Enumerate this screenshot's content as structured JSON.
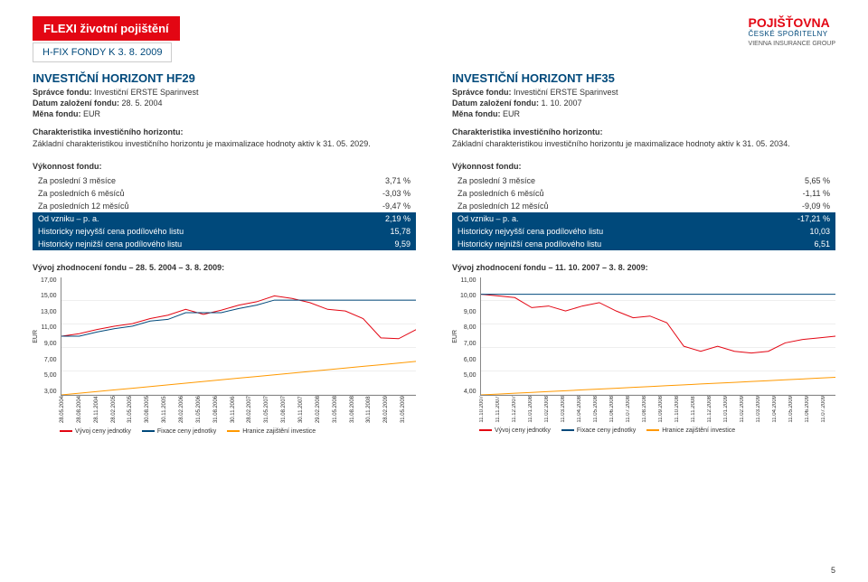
{
  "page_number": "5",
  "header": {
    "title": "FLEXI životní pojištění",
    "subtitle": "H-FIX FONDY K 3. 8. 2009"
  },
  "logo": {
    "brand": "POJIŠŤOVNA",
    "sub": "ČESKÉ SPOŘITELNY",
    "group": "VIENNA INSURANCE GROUP"
  },
  "left": {
    "title": "INVESTIČNÍ HORIZONT HF29",
    "manager_label": "Správce fondu:",
    "manager": "Investiční ERSTE Sparinvest",
    "date_label": "Datum založení fondu:",
    "date": "28. 5. 2004",
    "currency_label": "Měna fondu:",
    "currency": "EUR",
    "charac_title": "Charakteristika investičního horizontu:",
    "charac_body": "Základní charakteristikou investičního horizontu je maximalizace hodnoty aktiv k 31. 05. 2029.",
    "perf_title": "Výkonnost fondu:",
    "rows": [
      {
        "label": "Za poslední 3 měsíce",
        "value": "3,71 %",
        "dark": false
      },
      {
        "label": "Za posledních 6 měsíců",
        "value": "-3,03 %",
        "dark": false
      },
      {
        "label": "Za posledních 12 měsíců",
        "value": "-9,47 %",
        "dark": false
      },
      {
        "label": "Od vzniku – p. a.",
        "value": "2,19 %",
        "dark": true
      },
      {
        "label": "Historicky nejvyšší cena podílového listu",
        "value": "15,78",
        "dark": true
      },
      {
        "label": "Historicky nejnižší cena podílového listu",
        "value": "9,59",
        "dark": true
      }
    ],
    "chart_title": "Vývoj zhodnocení fondu – 28. 5. 2004 – 3. 8. 2009:",
    "chart": {
      "y_label": "EUR",
      "y_ticks": [
        "17,00",
        "15,00",
        "13,00",
        "11,00",
        "9,00",
        "7,00",
        "5,00",
        "3,00"
      ],
      "y_min": 3,
      "y_max": 17,
      "x_ticks": [
        "28.05.2004",
        "28.08.2004",
        "28.11.2004",
        "28.02.2005",
        "31.05.2005",
        "30.08.2005",
        "30.11.2005",
        "28.02.2006",
        "31.05.2006",
        "31.08.2006",
        "30.11.2006",
        "28.02.2007",
        "31.05.2007",
        "31.08.2007",
        "30.11.2007",
        "29.02.2008",
        "31.05.2008",
        "31.08.2008",
        "30.11.2008",
        "28.02.2009",
        "31.05.2009"
      ],
      "series": {
        "vyvoj": {
          "color": "#e30613",
          "values": [
            10.0,
            10.3,
            10.8,
            11.2,
            11.5,
            12.1,
            12.5,
            13.2,
            12.6,
            13.1,
            13.7,
            14.1,
            14.8,
            14.5,
            14.0,
            13.2,
            13.0,
            12.1,
            9.8,
            9.7,
            10.8
          ]
        },
        "fixace": {
          "color": "#00497b",
          "values": [
            10.0,
            10.0,
            10.5,
            10.9,
            11.2,
            11.8,
            12.0,
            12.8,
            12.8,
            12.8,
            13.3,
            13.7,
            14.3,
            14.3,
            14.3,
            14.3,
            14.3,
            14.3,
            14.3,
            14.3,
            14.3
          ]
        },
        "hranice": {
          "color": "#ff9900",
          "values": [
            3.0,
            3.2,
            3.4,
            3.6,
            3.8,
            4.0,
            4.2,
            4.4,
            4.6,
            4.8,
            5.0,
            5.2,
            5.4,
            5.6,
            5.8,
            6.0,
            6.2,
            6.4,
            6.6,
            6.8,
            7.0
          ]
        }
      },
      "legend": [
        {
          "label": "Vývoj ceny jednotky",
          "color": "#e30613"
        },
        {
          "label": "Fixace ceny jednotky",
          "color": "#00497b"
        },
        {
          "label": "Hranice zajištění investice",
          "color": "#ff9900"
        }
      ]
    }
  },
  "right": {
    "title": "INVESTIČNÍ HORIZONT HF35",
    "manager_label": "Správce fondu:",
    "manager": "Investiční ERSTE Sparinvest",
    "date_label": "Datum založení fondu:",
    "date": "1. 10. 2007",
    "currency_label": "Měna fondu:",
    "currency": "EUR",
    "charac_title": "Charakteristika investičního horizontu:",
    "charac_body": "Základní charakteristikou investičního horizontu je maximalizace hodnoty aktiv k 31. 05. 2034.",
    "perf_title": "Výkonnost fondu:",
    "rows": [
      {
        "label": "Za poslední 3 měsíce",
        "value": "5,65 %",
        "dark": false
      },
      {
        "label": "Za posledních 6 měsíců",
        "value": "-1,11 %",
        "dark": false
      },
      {
        "label": "Za posledních 12 měsíců",
        "value": "-9,09 %",
        "dark": false
      },
      {
        "label": "Od vzniku – p. a.",
        "value": "-17,21 %",
        "dark": true
      },
      {
        "label": "Historicky nejvyšší cena podílového listu",
        "value": "10,03",
        "dark": true
      },
      {
        "label": "Historicky nejnižší cena podílového listu",
        "value": "6,51",
        "dark": true
      }
    ],
    "chart_title": "Vývoj zhodnocení fondu – 11. 10. 2007 – 3. 8. 2009:",
    "chart": {
      "y_label": "EUR",
      "y_ticks": [
        "11,00",
        "10,00",
        "9,00",
        "8,00",
        "7,00",
        "6,00",
        "5,00",
        "4,00"
      ],
      "y_min": 4,
      "y_max": 11,
      "x_ticks": [
        "11.10.2007",
        "11.11.2007",
        "11.12.2007",
        "11.01.2008",
        "11.02.2008",
        "11.03.2008",
        "11.04.2008",
        "11.05.2008",
        "11.06.2008",
        "11.07.2008",
        "11.08.2008",
        "11.09.2008",
        "11.10.2008",
        "11.11.2008",
        "11.12.2008",
        "11.01.2009",
        "11.02.2009",
        "11.03.2009",
        "11.04.2009",
        "11.05.2009",
        "11.06.2009",
        "11.07.2009"
      ],
      "series": {
        "vyvoj": {
          "color": "#e30613",
          "values": [
            10.0,
            9.9,
            9.8,
            9.2,
            9.3,
            9.0,
            9.3,
            9.5,
            9.0,
            8.6,
            8.7,
            8.3,
            6.9,
            6.6,
            6.9,
            6.6,
            6.5,
            6.6,
            7.1,
            7.3,
            7.4,
            7.5
          ]
        },
        "fixace": {
          "color": "#00497b",
          "values": [
            10.0,
            10.0,
            10.0,
            10.0,
            10.0,
            10.0,
            10.0,
            10.0,
            10.0,
            10.0,
            10.0,
            10.0,
            10.0,
            10.0,
            10.0,
            10.0,
            10.0,
            10.0,
            10.0,
            10.0,
            10.0,
            10.0
          ]
        },
        "hranice": {
          "color": "#ff9900",
          "values": [
            4.0,
            4.05,
            4.1,
            4.15,
            4.2,
            4.25,
            4.3,
            4.35,
            4.4,
            4.45,
            4.5,
            4.55,
            4.6,
            4.65,
            4.7,
            4.75,
            4.8,
            4.85,
            4.9,
            4.95,
            5.0,
            5.05
          ]
        }
      },
      "legend": [
        {
          "label": "Vývoj ceny jednotky",
          "color": "#e30613"
        },
        {
          "label": "Fixace ceny jednotky",
          "color": "#00497b"
        },
        {
          "label": "Hranice zajištění investice",
          "color": "#ff9900"
        }
      ]
    }
  }
}
